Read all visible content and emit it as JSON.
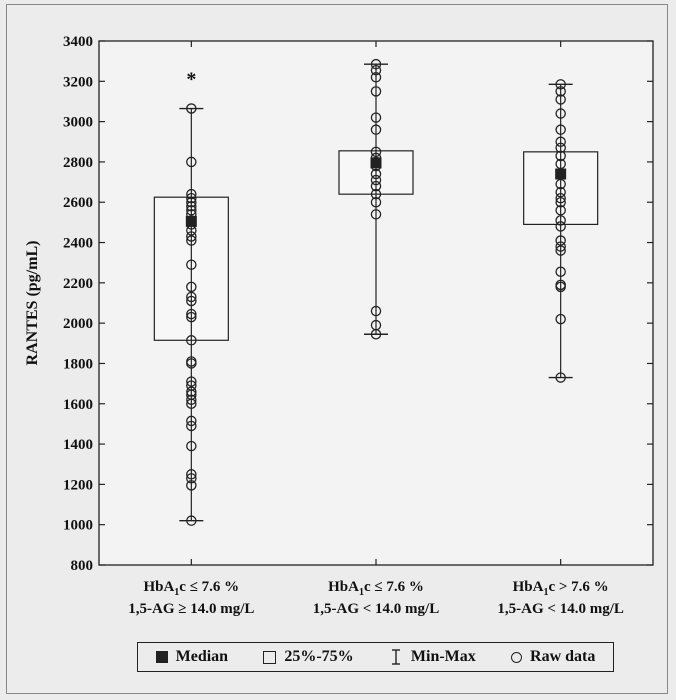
{
  "chart_data": {
    "type": "box",
    "ylabel": "RANTES (pg/mL)",
    "ylim": [
      800,
      3400
    ],
    "yticks": [
      "800",
      "1000",
      "1200",
      "1400",
      "1600",
      "1800",
      "2000",
      "2200",
      "2400",
      "2600",
      "2800",
      "3000",
      "3200",
      "3400"
    ],
    "groups": [
      {
        "label_line1_prefix": "HbA",
        "label_line1_sub": "1",
        "label_line1_suffix": "c ≤ 7.6 %",
        "label_line2": "1,5-AG ≥ 14.0 mg/L",
        "median": 2505,
        "q1": 1915,
        "q3": 2625,
        "min": 1020,
        "max": 3065,
        "outliers": [
          3225
        ],
        "outlier_mark": "*",
        "raw": [
          1020,
          1195,
          1230,
          1250,
          1390,
          1490,
          1515,
          1600,
          1620,
          1645,
          1660,
          1690,
          1710,
          1800,
          1810,
          1915,
          2030,
          2045,
          2110,
          2130,
          2180,
          2290,
          2410,
          2430,
          2460,
          2490,
          2510,
          2540,
          2560,
          2580,
          2600,
          2620,
          2640,
          2800,
          3065
        ]
      },
      {
        "label_line1_prefix": "HbA",
        "label_line1_sub": "1",
        "label_line1_suffix": "c ≤ 7.6 %",
        "label_line2": "1,5-AG < 14.0 mg/L",
        "median": 2795,
        "q1": 2640,
        "q3": 2855,
        "min": 1945,
        "max": 3285,
        "outliers": [],
        "raw": [
          1945,
          1990,
          2060,
          2540,
          2600,
          2640,
          2680,
          2710,
          2740,
          2780,
          2800,
          2820,
          2850,
          2960,
          3020,
          3150,
          3220,
          3255,
          3285
        ]
      },
      {
        "label_line1_prefix": "HbA",
        "label_line1_sub": "1",
        "label_line1_suffix": "c > 7.6 %",
        "label_line2": "1,5-AG < 14.0 mg/L",
        "median": 2740,
        "q1": 2490,
        "q3": 2850,
        "min": 1730,
        "max": 3185,
        "outliers": [],
        "raw": [
          1730,
          2020,
          2180,
          2190,
          2255,
          2360,
          2380,
          2410,
          2480,
          2510,
          2560,
          2600,
          2620,
          2650,
          2690,
          2740,
          2790,
          2830,
          2870,
          2900,
          2960,
          3040,
          3110,
          3150,
          3185
        ]
      }
    ]
  },
  "legend": {
    "median": "Median",
    "box": "25%-75%",
    "minmax": "Min-Max",
    "raw": "Raw data"
  }
}
